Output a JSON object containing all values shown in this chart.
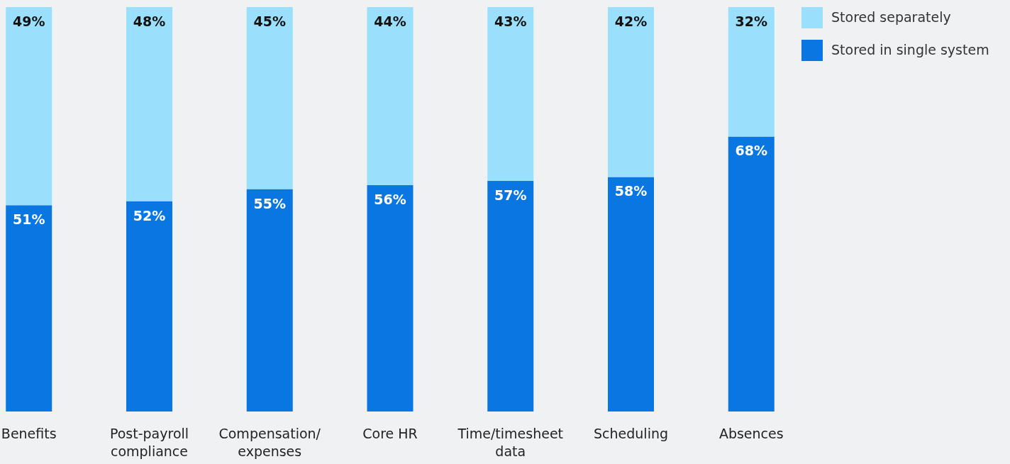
{
  "chart_data": {
    "type": "bar",
    "stacked": true,
    "legend": "top right",
    "categories": [
      "Benefits",
      "Post-payroll compliance",
      "Compensation/expenses",
      "Core HR",
      "Time/timesheet data",
      "Scheduling",
      "Absences"
    ],
    "series": [
      {
        "name": "Stored in single system",
        "color": "#0a76e2",
        "values": [
          51,
          52,
          55,
          56,
          57,
          58,
          68
        ],
        "value_labels": [
          "51%",
          "52%",
          "55%",
          "56%",
          "57%",
          "58%",
          "68%"
        ]
      },
      {
        "name": "Stored separately",
        "color": "#9ae0fc",
        "values": [
          49,
          48,
          45,
          44,
          43,
          42,
          32
        ],
        "value_labels": [
          "49%",
          "48%",
          "45%",
          "44%",
          "43%",
          "42%",
          "32%"
        ]
      }
    ]
  }
}
